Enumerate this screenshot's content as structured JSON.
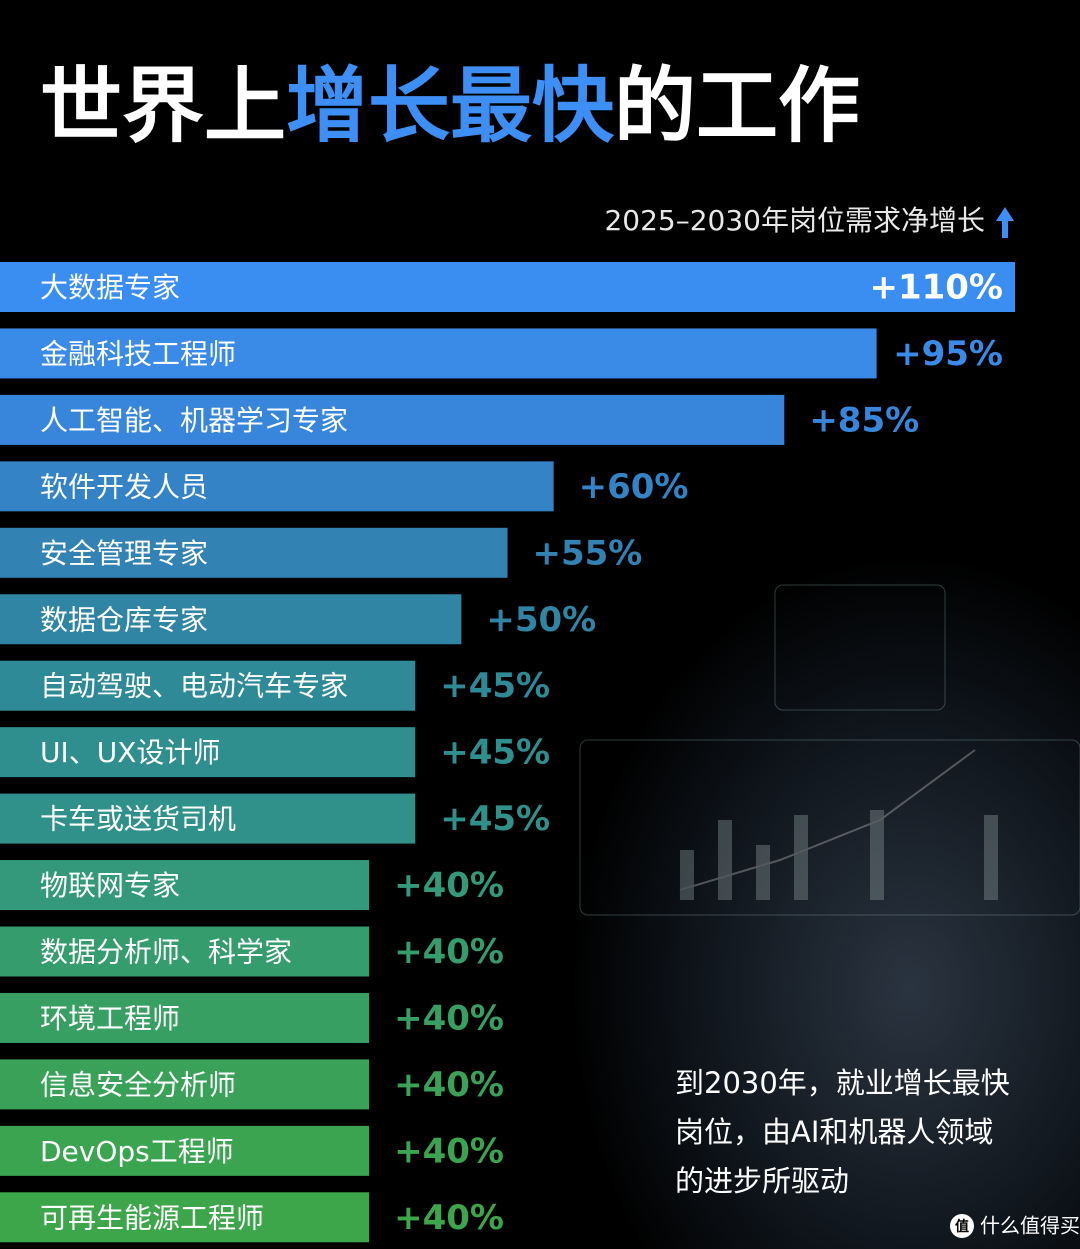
{
  "chart_data": {
    "type": "bar",
    "orientation": "horizontal",
    "title": [
      "世界上",
      "增长最快",
      "的工作"
    ],
    "title_colors": [
      "#ffffff",
      "#3d8ff5",
      "#ffffff"
    ],
    "subtitle": "2025–2030年岗位需求净增长",
    "categories": [
      "大数据专家",
      "金融科技工程师",
      "人工智能、机器学习专家",
      "软件开发人员",
      "安全管理专家",
      "数据仓库专家",
      "自动驾驶、电动汽车专家",
      "UI、UX设计师",
      "卡车或送货司机",
      "物联网专家",
      "数据分析师、科学家",
      "环境工程师",
      "信息安全分析师",
      "DevOps工程师",
      "可再生能源工程师"
    ],
    "values": [
      110,
      95,
      85,
      60,
      55,
      50,
      45,
      45,
      45,
      40,
      40,
      40,
      40,
      40,
      40
    ],
    "value_labels": [
      "+110%",
      "+95%",
      "+85%",
      "+60%",
      "+55%",
      "+50%",
      "+45%",
      "+45%",
      "+45%",
      "+40%",
      "+40%",
      "+40%",
      "+40%",
      "+40%",
      "+40%"
    ],
    "colors": [
      "#3a8ef2",
      "#3a8ae8",
      "#3786dc",
      "#3483c6",
      "#3282b4",
      "#3085a4",
      "#2f8a98",
      "#2f8e8e",
      "#30908a",
      "#33997a",
      "#359c6e",
      "#379f62",
      "#39a258",
      "#3ba450",
      "#3da64a"
    ],
    "annotation": [
      "到2030年，就业增长最快",
      "岗位，由AI和机器人领域",
      "的进步所驱动"
    ],
    "watermark": "什么值得买"
  }
}
